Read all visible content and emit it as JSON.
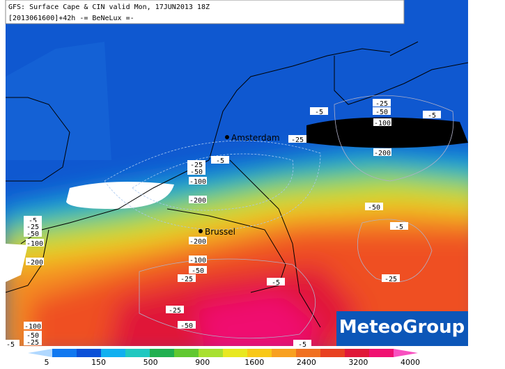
{
  "header": {
    "line1": "GFS: Surface Cape & CIN valid Mon, 17JUN2013 18Z",
    "line2": "[2013061600]+42h -= BeNeLux =-"
  },
  "cities": [
    "Amsterdam",
    "Brussel"
  ],
  "contour_labels": [
    "-5",
    "-25",
    "-50",
    "-5",
    "-100",
    "-25",
    "-200",
    "-25",
    "-50",
    "-5",
    "-100",
    "-200",
    "-50",
    "-5",
    "-200",
    "-5",
    "-25",
    "-50",
    "-100",
    "-200",
    "-100",
    "-50",
    "-25",
    "-5",
    "-25",
    "-25",
    "-50",
    "-100",
    "-50",
    "-25",
    "-5",
    "-5"
  ],
  "colorbar": {
    "labels": [
      5,
      150,
      500,
      900,
      1600,
      2400,
      3200,
      4000
    ]
  },
  "logo": "MeteoGroup"
}
